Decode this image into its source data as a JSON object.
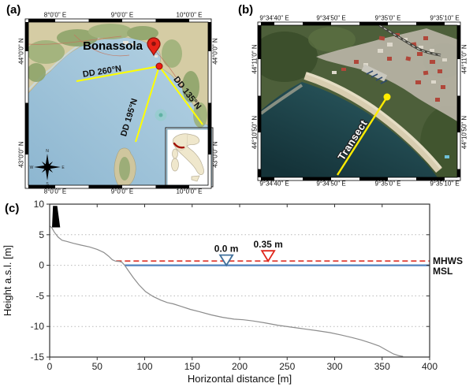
{
  "panel_a": {
    "label": "(a)",
    "city_label": "Bonassola",
    "dd_labels": {
      "dd260": "DD 260°N",
      "dd195": "DD 195°N",
      "dd135": "DD 135°N"
    },
    "lon_ticks": [
      "8°0'0\" E",
      "9°0'0\" E",
      "10°0'0\" E"
    ],
    "lat_ticks": [
      "44°0'0\" N",
      "43°0'0\" N"
    ],
    "compass": {
      "n": "N",
      "e": "E",
      "s": "S",
      "w": "W"
    }
  },
  "panel_b": {
    "label": "(b)",
    "transect_label": "Transect",
    "lon_ticks": [
      "9°34'40\" E",
      "9°34'50\" E",
      "9°35'0\" E",
      "9°35'10\" E"
    ],
    "lat_ticks": [
      "44°11'0\" N",
      "44°10'50\" N"
    ]
  },
  "panel_c": {
    "label": "(c)"
  },
  "chart_data": {
    "type": "line",
    "title": "",
    "xlabel": "Horizontal distance [m]",
    "ylabel": "Height a.s.l. [m]",
    "xlim": [
      0,
      400
    ],
    "ylim": [
      -15,
      10
    ],
    "x_ticks": [
      0,
      50,
      100,
      150,
      200,
      250,
      300,
      350,
      400
    ],
    "y_ticks": [
      10,
      5,
      0,
      -5,
      -10,
      -15
    ],
    "grid": "horizontal dotted at 5, 0, -5, -10",
    "legend": "none; MHWS and MSL labelled at right edge",
    "series": [
      {
        "name": "beach and nearshore elevation profile",
        "color": "#8c8c8c",
        "x": [
          0,
          2,
          5,
          9,
          13,
          18,
          25,
          33,
          42,
          50,
          57,
          62,
          66,
          69,
          73,
          76,
          79,
          83,
          88,
          94,
          101,
          109,
          117,
          124,
          130,
          138,
          148,
          158,
          170,
          182,
          194,
          204,
          214,
          226,
          240,
          254,
          268,
          282,
          295,
          307,
          318,
          328,
          338,
          347,
          355,
          362,
          368,
          372
        ],
        "y": [
          6.4,
          6.2,
          5.4,
          4.6,
          4.1,
          3.9,
          3.6,
          3.3,
          3.0,
          2.6,
          2.1,
          1.5,
          0.9,
          0.7,
          0.65,
          0.5,
          0.0,
          -0.9,
          -2.0,
          -3.2,
          -4.3,
          -5.1,
          -5.7,
          -6.1,
          -6.3,
          -6.7,
          -7.2,
          -7.6,
          -8.1,
          -8.5,
          -8.8,
          -8.9,
          -9.1,
          -9.4,
          -9.8,
          -10.1,
          -10.4,
          -10.7,
          -11.0,
          -11.4,
          -11.8,
          -12.2,
          -12.7,
          -13.2,
          -13.9,
          -14.5,
          -14.8,
          -14.9
        ]
      }
    ],
    "reference_levels": [
      {
        "name": "MSL",
        "label": "MSL",
        "value_m": 0.0,
        "drawn_at": 0.0,
        "x_start": 79,
        "style": "solid",
        "color": "#4f81bd"
      },
      {
        "name": "MHWS",
        "label": "MHWS",
        "value_m": 0.35,
        "drawn_at": 0.7,
        "x_start": 70,
        "style": "dashed",
        "color": "#e0433a"
      }
    ],
    "markers": [
      {
        "label": "0.0 m",
        "value_m": 0.0,
        "x": 186,
        "tip_y": 0.0,
        "color": "#41719c",
        "shape": "open inverted triangle"
      },
      {
        "label": "0.35 m",
        "value_m": 0.35,
        "x": 230,
        "tip_y": 0.7,
        "color": "#e0261b",
        "shape": "open inverted triangle"
      }
    ],
    "structure": {
      "note": "black building/cliff silhouette at profile start",
      "x": [
        2.5,
        3.5,
        8,
        11
      ],
      "y": [
        6.2,
        9.7,
        9.7,
        6.2
      ],
      "color": "#000000"
    }
  }
}
